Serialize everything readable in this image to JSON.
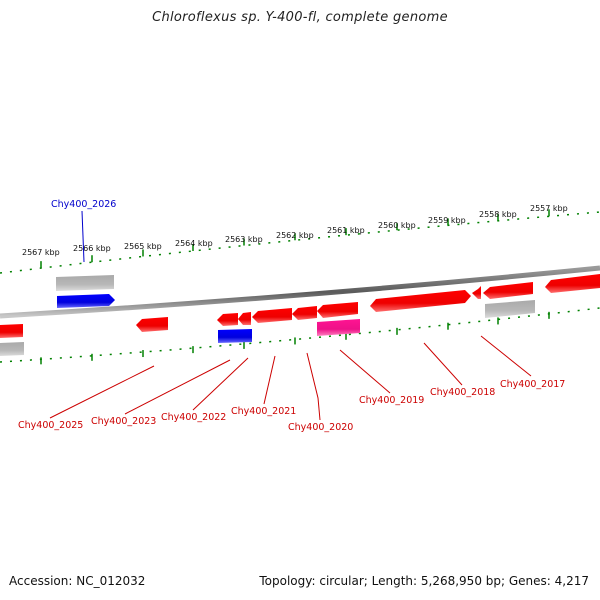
{
  "title": "Chloroflexus sp. Y-400-fl, complete genome",
  "footer": {
    "accession": "Accession: NC_012032",
    "summary": "Topology: circular; Length: 5,268,950 bp; Genes: 4,217"
  },
  "scale_labels": [
    "2567 kbp",
    "2566 kbp",
    "2565 kbp",
    "2564 kbp",
    "2563 kbp",
    "2562 kbp",
    "2561 kbp",
    "2560 kbp",
    "2559 kbp",
    "2558 kbp",
    "2557 kbp"
  ],
  "gene_labels": [
    "Chy400_2026",
    "Chy400_2025",
    "Chy400_2023",
    "Chy400_2022",
    "Chy400_2021",
    "Chy400_2020",
    "Chy400_2019",
    "Chy400_2018",
    "Chy400_2017"
  ],
  "colors": {
    "cds": "#ff0000",
    "other_gene": "#0000ff",
    "pink_feature": "#ff1493",
    "grey_feature": "#b0b0b0",
    "backbone": "#808080",
    "ticks": "#008000",
    "label_red": "#cc0000",
    "label_blue": "#0000cc"
  }
}
